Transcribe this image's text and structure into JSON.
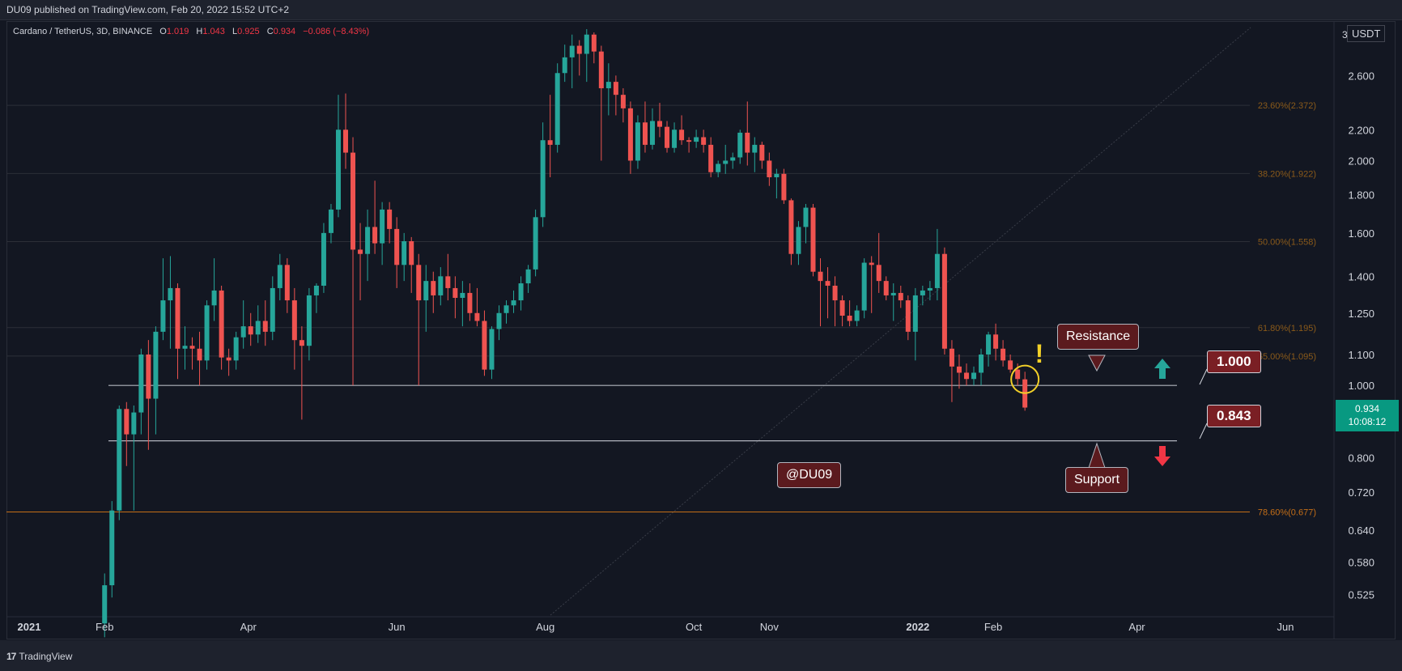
{
  "header": {
    "published": "DU09 published on TradingView.com, Feb 20, 2022 15:52 UTC+2"
  },
  "legend": {
    "symbol": "Cardano / TetherUS, 3D, BINANCE",
    "o_label": "O",
    "o": "1.019",
    "h_label": "H",
    "h": "1.043",
    "l_label": "L",
    "l": "0.925",
    "c_label": "C",
    "c": "0.934",
    "chg": "−0.086 (−8.43%)"
  },
  "price_axis": {
    "unit": "USDT",
    "top_label": "3",
    "last_price": "0.934",
    "countdown": "10:08:12"
  },
  "footer": {
    "brand": "TradingView"
  },
  "annotations": {
    "resistance": "Resistance",
    "support": "Support",
    "watermark": "@DU09",
    "level_upper": "1.000",
    "level_lower": "0.843"
  },
  "colors": {
    "up": "#26a69a",
    "down": "#ef5350",
    "fib": "#8a5a1a",
    "fib_strong": "#c46e17",
    "level": "#b2b5be"
  },
  "chart_data": {
    "type": "candlestick",
    "title": "Cardano / TetherUS, 3D, BINANCE",
    "y_scale": "log",
    "ylim": [
      0.49,
      3.0
    ],
    "y_ticks": [
      2.6,
      2.2,
      2.0,
      1.8,
      1.6,
      1.4,
      1.25,
      1.1,
      1.0,
      0.8,
      0.72,
      0.64,
      0.58,
      0.525
    ],
    "y_tick_labels": [
      "2.600",
      "2.200",
      "2.000",
      "1.800",
      "1.600",
      "1.400",
      "1.250",
      "1.100",
      "1.000",
      "0.800",
      "0.720",
      "0.640",
      "0.580",
      "0.525"
    ],
    "x_ticks": [
      "2021",
      "Feb",
      "Apr",
      "Jun",
      "Aug",
      "Oct",
      "Nov",
      "2022",
      "Feb",
      "Apr",
      "Jun"
    ],
    "x_tick_dates": [
      "2021-01-01",
      "2021-02-01",
      "2021-04-01",
      "2021-06-01",
      "2021-08-01",
      "2021-10-01",
      "2021-11-01",
      "2022-01-01",
      "2022-02-01",
      "2022-04-01",
      "2022-06-01"
    ],
    "fib_levels": [
      {
        "label": "23.60%(2.372)",
        "value": 2.372
      },
      {
        "label": "38.20%(1.922)",
        "value": 1.922
      },
      {
        "label": "50.00%(1.558)",
        "value": 1.558
      },
      {
        "label": "61.80%(1.195)",
        "value": 1.195
      },
      {
        "label": "65.00%(1.095)",
        "value": 1.095
      },
      {
        "label": "78.60%(0.677)",
        "value": 0.677
      }
    ],
    "horizontal_levels": [
      1.0,
      0.843
    ],
    "candles": [
      {
        "date": "2021-02-01",
        "o": 0.48,
        "h": 0.56,
        "l": 0.46,
        "c": 0.54
      },
      {
        "date": "2021-02-04",
        "o": 0.54,
        "h": 0.7,
        "l": 0.52,
        "c": 0.68
      },
      {
        "date": "2021-02-07",
        "o": 0.68,
        "h": 0.94,
        "l": 0.66,
        "c": 0.93
      },
      {
        "date": "2021-02-10",
        "o": 0.93,
        "h": 0.95,
        "l": 0.78,
        "c": 0.86
      },
      {
        "date": "2021-02-13",
        "o": 0.86,
        "h": 0.94,
        "l": 0.68,
        "c": 0.92
      },
      {
        "date": "2021-02-16",
        "o": 0.92,
        "h": 1.12,
        "l": 0.86,
        "c": 1.1
      },
      {
        "date": "2021-02-19",
        "o": 1.1,
        "h": 1.15,
        "l": 0.82,
        "c": 0.96
      },
      {
        "date": "2021-02-22",
        "o": 0.96,
        "h": 1.2,
        "l": 0.86,
        "c": 1.18
      },
      {
        "date": "2021-02-25",
        "o": 1.18,
        "h": 1.48,
        "l": 1.15,
        "c": 1.3
      },
      {
        "date": "2021-02-28",
        "o": 1.3,
        "h": 1.49,
        "l": 1.12,
        "c": 1.35
      },
      {
        "date": "2021-03-03",
        "o": 1.35,
        "h": 1.37,
        "l": 1.02,
        "c": 1.12
      },
      {
        "date": "2021-03-06",
        "o": 1.12,
        "h": 1.2,
        "l": 1.05,
        "c": 1.13
      },
      {
        "date": "2021-03-09",
        "o": 1.13,
        "h": 1.16,
        "l": 1.05,
        "c": 1.12
      },
      {
        "date": "2021-03-12",
        "o": 1.12,
        "h": 1.18,
        "l": 1.0,
        "c": 1.08
      },
      {
        "date": "2021-03-15",
        "o": 1.08,
        "h": 1.3,
        "l": 1.05,
        "c": 1.28
      },
      {
        "date": "2021-03-18",
        "o": 1.28,
        "h": 1.48,
        "l": 1.22,
        "c": 1.34
      },
      {
        "date": "2021-03-21",
        "o": 1.34,
        "h": 1.36,
        "l": 1.05,
        "c": 1.09
      },
      {
        "date": "2021-03-24",
        "o": 1.09,
        "h": 1.12,
        "l": 1.03,
        "c": 1.08
      },
      {
        "date": "2021-03-27",
        "o": 1.08,
        "h": 1.18,
        "l": 1.05,
        "c": 1.16
      },
      {
        "date": "2021-03-30",
        "o": 1.16,
        "h": 1.3,
        "l": 1.12,
        "c": 1.2
      },
      {
        "date": "2021-04-02",
        "o": 1.2,
        "h": 1.25,
        "l": 1.13,
        "c": 1.17
      },
      {
        "date": "2021-04-05",
        "o": 1.17,
        "h": 1.28,
        "l": 1.14,
        "c": 1.22
      },
      {
        "date": "2021-04-08",
        "o": 1.22,
        "h": 1.3,
        "l": 1.13,
        "c": 1.18
      },
      {
        "date": "2021-04-11",
        "o": 1.18,
        "h": 1.4,
        "l": 1.15,
        "c": 1.35
      },
      {
        "date": "2021-04-14",
        "o": 1.35,
        "h": 1.5,
        "l": 1.3,
        "c": 1.45
      },
      {
        "date": "2021-04-17",
        "o": 1.45,
        "h": 1.48,
        "l": 1.25,
        "c": 1.3
      },
      {
        "date": "2021-04-20",
        "o": 1.3,
        "h": 1.35,
        "l": 1.05,
        "c": 1.15
      },
      {
        "date": "2021-04-23",
        "o": 1.15,
        "h": 1.2,
        "l": 0.9,
        "c": 1.13
      },
      {
        "date": "2021-04-26",
        "o": 1.13,
        "h": 1.35,
        "l": 1.08,
        "c": 1.32
      },
      {
        "date": "2021-04-29",
        "o": 1.32,
        "h": 1.37,
        "l": 1.25,
        "c": 1.36
      },
      {
        "date": "2021-05-02",
        "o": 1.36,
        "h": 1.65,
        "l": 1.33,
        "c": 1.6
      },
      {
        "date": "2021-05-05",
        "o": 1.6,
        "h": 1.75,
        "l": 1.55,
        "c": 1.72
      },
      {
        "date": "2021-05-08",
        "o": 1.72,
        "h": 2.45,
        "l": 1.68,
        "c": 2.2
      },
      {
        "date": "2021-05-11",
        "o": 2.2,
        "h": 2.46,
        "l": 1.95,
        "c": 2.05
      },
      {
        "date": "2021-05-14",
        "o": 2.05,
        "h": 2.15,
        "l": 1.0,
        "c": 1.52
      },
      {
        "date": "2021-05-17",
        "o": 1.52,
        "h": 1.65,
        "l": 1.3,
        "c": 1.5
      },
      {
        "date": "2021-05-20",
        "o": 1.5,
        "h": 1.72,
        "l": 1.38,
        "c": 1.63
      },
      {
        "date": "2021-05-23",
        "o": 1.63,
        "h": 1.88,
        "l": 1.5,
        "c": 1.55
      },
      {
        "date": "2021-05-26",
        "o": 1.55,
        "h": 1.76,
        "l": 1.45,
        "c": 1.72
      },
      {
        "date": "2021-05-29",
        "o": 1.72,
        "h": 1.76,
        "l": 1.55,
        "c": 1.62
      },
      {
        "date": "2021-06-01",
        "o": 1.62,
        "h": 1.68,
        "l": 1.35,
        "c": 1.45
      },
      {
        "date": "2021-06-04",
        "o": 1.45,
        "h": 1.6,
        "l": 1.38,
        "c": 1.56
      },
      {
        "date": "2021-06-07",
        "o": 1.56,
        "h": 1.58,
        "l": 1.33,
        "c": 1.45
      },
      {
        "date": "2021-06-10",
        "o": 1.45,
        "h": 1.5,
        "l": 1.0,
        "c": 1.3
      },
      {
        "date": "2021-06-13",
        "o": 1.3,
        "h": 1.45,
        "l": 1.18,
        "c": 1.38
      },
      {
        "date": "2021-06-16",
        "o": 1.38,
        "h": 1.42,
        "l": 1.25,
        "c": 1.32
      },
      {
        "date": "2021-06-19",
        "o": 1.32,
        "h": 1.44,
        "l": 1.28,
        "c": 1.4
      },
      {
        "date": "2021-06-22",
        "o": 1.4,
        "h": 1.5,
        "l": 1.3,
        "c": 1.35
      },
      {
        "date": "2021-06-25",
        "o": 1.35,
        "h": 1.4,
        "l": 1.23,
        "c": 1.31
      },
      {
        "date": "2021-06-28",
        "o": 1.31,
        "h": 1.38,
        "l": 1.2,
        "c": 1.33
      },
      {
        "date": "2021-07-01",
        "o": 1.33,
        "h": 1.37,
        "l": 1.22,
        "c": 1.25
      },
      {
        "date": "2021-07-04",
        "o": 1.25,
        "h": 1.35,
        "l": 1.2,
        "c": 1.22
      },
      {
        "date": "2021-07-07",
        "o": 1.22,
        "h": 1.26,
        "l": 1.03,
        "c": 1.05
      },
      {
        "date": "2021-07-10",
        "o": 1.05,
        "h": 1.2,
        "l": 1.02,
        "c": 1.19
      },
      {
        "date": "2021-07-13",
        "o": 1.19,
        "h": 1.28,
        "l": 1.15,
        "c": 1.25
      },
      {
        "date": "2021-07-16",
        "o": 1.25,
        "h": 1.3,
        "l": 1.21,
        "c": 1.28
      },
      {
        "date": "2021-07-19",
        "o": 1.28,
        "h": 1.34,
        "l": 1.25,
        "c": 1.3
      },
      {
        "date": "2021-07-22",
        "o": 1.3,
        "h": 1.4,
        "l": 1.26,
        "c": 1.37
      },
      {
        "date": "2021-07-25",
        "o": 1.37,
        "h": 1.45,
        "l": 1.33,
        "c": 1.43
      },
      {
        "date": "2021-07-28",
        "o": 1.43,
        "h": 1.72,
        "l": 1.4,
        "c": 1.68
      },
      {
        "date": "2021-07-31",
        "o": 1.68,
        "h": 2.25,
        "l": 1.63,
        "c": 2.13
      },
      {
        "date": "2021-08-03",
        "o": 2.13,
        "h": 2.45,
        "l": 1.9,
        "c": 2.1
      },
      {
        "date": "2021-08-06",
        "o": 2.1,
        "h": 2.7,
        "l": 2.05,
        "c": 2.62
      },
      {
        "date": "2021-08-09",
        "o": 2.62,
        "h": 2.86,
        "l": 2.55,
        "c": 2.75
      },
      {
        "date": "2021-08-12",
        "o": 2.75,
        "h": 2.95,
        "l": 2.5,
        "c": 2.85
      },
      {
        "date": "2021-08-15",
        "o": 2.85,
        "h": 2.9,
        "l": 2.6,
        "c": 2.78
      },
      {
        "date": "2021-08-18",
        "o": 2.78,
        "h": 3.0,
        "l": 2.55,
        "c": 2.95
      },
      {
        "date": "2021-08-21",
        "o": 2.95,
        "h": 2.97,
        "l": 2.7,
        "c": 2.8
      },
      {
        "date": "2021-08-24",
        "o": 2.8,
        "h": 2.85,
        "l": 2.0,
        "c": 2.5
      },
      {
        "date": "2021-08-27",
        "o": 2.5,
        "h": 2.7,
        "l": 2.3,
        "c": 2.55
      },
      {
        "date": "2021-08-30",
        "o": 2.55,
        "h": 2.6,
        "l": 2.3,
        "c": 2.45
      },
      {
        "date": "2021-09-02",
        "o": 2.45,
        "h": 2.5,
        "l": 2.25,
        "c": 2.35
      },
      {
        "date": "2021-09-05",
        "o": 2.35,
        "h": 2.4,
        "l": 1.92,
        "c": 2.0
      },
      {
        "date": "2021-09-08",
        "o": 2.0,
        "h": 2.3,
        "l": 1.95,
        "c": 2.25
      },
      {
        "date": "2021-09-11",
        "o": 2.25,
        "h": 2.4,
        "l": 2.05,
        "c": 2.1
      },
      {
        "date": "2021-09-14",
        "o": 2.1,
        "h": 2.35,
        "l": 2.07,
        "c": 2.26
      },
      {
        "date": "2021-09-17",
        "o": 2.26,
        "h": 2.39,
        "l": 2.15,
        "c": 2.22
      },
      {
        "date": "2021-09-20",
        "o": 2.22,
        "h": 2.26,
        "l": 2.05,
        "c": 2.08
      },
      {
        "date": "2021-09-23",
        "o": 2.08,
        "h": 2.25,
        "l": 2.05,
        "c": 2.2
      },
      {
        "date": "2021-09-26",
        "o": 2.2,
        "h": 2.3,
        "l": 2.1,
        "c": 2.13
      },
      {
        "date": "2021-09-29",
        "o": 2.13,
        "h": 2.15,
        "l": 2.05,
        "c": 2.12
      },
      {
        "date": "2021-10-02",
        "o": 2.12,
        "h": 2.2,
        "l": 2.08,
        "c": 2.15
      },
      {
        "date": "2021-10-05",
        "o": 2.15,
        "h": 2.2,
        "l": 2.05,
        "c": 2.1
      },
      {
        "date": "2021-10-08",
        "o": 2.1,
        "h": 2.15,
        "l": 1.9,
        "c": 1.93
      },
      {
        "date": "2021-10-11",
        "o": 1.93,
        "h": 2.0,
        "l": 1.9,
        "c": 1.98
      },
      {
        "date": "2021-10-14",
        "o": 1.98,
        "h": 2.1,
        "l": 1.92,
        "c": 2.0
      },
      {
        "date": "2021-10-17",
        "o": 2.0,
        "h": 2.05,
        "l": 1.95,
        "c": 2.02
      },
      {
        "date": "2021-10-20",
        "o": 2.02,
        "h": 2.2,
        "l": 1.98,
        "c": 2.18
      },
      {
        "date": "2021-10-23",
        "o": 2.18,
        "h": 2.4,
        "l": 1.97,
        "c": 2.05
      },
      {
        "date": "2021-10-26",
        "o": 2.05,
        "h": 2.15,
        "l": 1.93,
        "c": 2.1
      },
      {
        "date": "2021-10-29",
        "o": 2.1,
        "h": 2.12,
        "l": 1.95,
        "c": 2.0
      },
      {
        "date": "2021-11-01",
        "o": 2.0,
        "h": 2.05,
        "l": 1.85,
        "c": 1.9
      },
      {
        "date": "2021-11-04",
        "o": 1.9,
        "h": 1.95,
        "l": 1.78,
        "c": 1.92
      },
      {
        "date": "2021-11-07",
        "o": 1.92,
        "h": 1.95,
        "l": 1.75,
        "c": 1.77
      },
      {
        "date": "2021-11-10",
        "o": 1.77,
        "h": 1.78,
        "l": 1.45,
        "c": 1.5
      },
      {
        "date": "2021-11-13",
        "o": 1.5,
        "h": 1.66,
        "l": 1.45,
        "c": 1.63
      },
      {
        "date": "2021-11-16",
        "o": 1.63,
        "h": 1.75,
        "l": 1.55,
        "c": 1.73
      },
      {
        "date": "2021-11-19",
        "o": 1.73,
        "h": 1.75,
        "l": 1.4,
        "c": 1.42
      },
      {
        "date": "2021-11-22",
        "o": 1.42,
        "h": 1.48,
        "l": 1.2,
        "c": 1.38
      },
      {
        "date": "2021-11-25",
        "o": 1.38,
        "h": 1.44,
        "l": 1.23,
        "c": 1.36
      },
      {
        "date": "2021-11-28",
        "o": 1.36,
        "h": 1.4,
        "l": 1.2,
        "c": 1.3
      },
      {
        "date": "2021-12-01",
        "o": 1.3,
        "h": 1.32,
        "l": 1.2,
        "c": 1.24
      },
      {
        "date": "2021-12-04",
        "o": 1.24,
        "h": 1.3,
        "l": 1.2,
        "c": 1.22
      },
      {
        "date": "2021-12-07",
        "o": 1.22,
        "h": 1.28,
        "l": 1.2,
        "c": 1.26
      },
      {
        "date": "2021-12-10",
        "o": 1.26,
        "h": 1.48,
        "l": 1.23,
        "c": 1.46
      },
      {
        "date": "2021-12-13",
        "o": 1.46,
        "h": 1.49,
        "l": 1.25,
        "c": 1.45
      },
      {
        "date": "2021-12-16",
        "o": 1.45,
        "h": 1.6,
        "l": 1.33,
        "c": 1.38
      },
      {
        "date": "2021-12-19",
        "o": 1.38,
        "h": 1.4,
        "l": 1.3,
        "c": 1.32
      },
      {
        "date": "2021-12-22",
        "o": 1.32,
        "h": 1.37,
        "l": 1.22,
        "c": 1.33
      },
      {
        "date": "2021-12-25",
        "o": 1.33,
        "h": 1.36,
        "l": 1.27,
        "c": 1.3
      },
      {
        "date": "2021-12-28",
        "o": 1.3,
        "h": 1.32,
        "l": 1.15,
        "c": 1.18
      },
      {
        "date": "2021-12-31",
        "o": 1.18,
        "h": 1.35,
        "l": 1.08,
        "c": 1.32
      },
      {
        "date": "2022-01-03",
        "o": 1.32,
        "h": 1.36,
        "l": 1.28,
        "c": 1.34
      },
      {
        "date": "2022-01-06",
        "o": 1.34,
        "h": 1.38,
        "l": 1.3,
        "c": 1.35
      },
      {
        "date": "2022-01-09",
        "o": 1.35,
        "h": 1.62,
        "l": 1.3,
        "c": 1.5
      },
      {
        "date": "2022-01-12",
        "o": 1.5,
        "h": 1.53,
        "l": 1.1,
        "c": 1.12
      },
      {
        "date": "2022-01-15",
        "o": 1.12,
        "h": 1.15,
        "l": 0.95,
        "c": 1.06
      },
      {
        "date": "2022-01-18",
        "o": 1.06,
        "h": 1.1,
        "l": 0.99,
        "c": 1.04
      },
      {
        "date": "2022-01-21",
        "o": 1.04,
        "h": 1.07,
        "l": 1.0,
        "c": 1.02
      },
      {
        "date": "2022-01-24",
        "o": 1.02,
        "h": 1.06,
        "l": 1.0,
        "c": 1.04
      },
      {
        "date": "2022-01-27",
        "o": 1.04,
        "h": 1.12,
        "l": 1.0,
        "c": 1.1
      },
      {
        "date": "2022-01-30",
        "o": 1.1,
        "h": 1.18,
        "l": 1.06,
        "c": 1.17
      },
      {
        "date": "2022-02-02",
        "o": 1.17,
        "h": 1.21,
        "l": 1.08,
        "c": 1.12
      },
      {
        "date": "2022-02-05",
        "o": 1.12,
        "h": 1.15,
        "l": 1.06,
        "c": 1.08
      },
      {
        "date": "2022-02-08",
        "o": 1.08,
        "h": 1.1,
        "l": 1.04,
        "c": 1.05
      },
      {
        "date": "2022-02-11",
        "o": 1.05,
        "h": 1.07,
        "l": 1.0,
        "c": 1.02
      },
      {
        "date": "2022-02-14",
        "o": 1.019,
        "h": 1.043,
        "l": 0.925,
        "c": 0.934
      }
    ]
  }
}
